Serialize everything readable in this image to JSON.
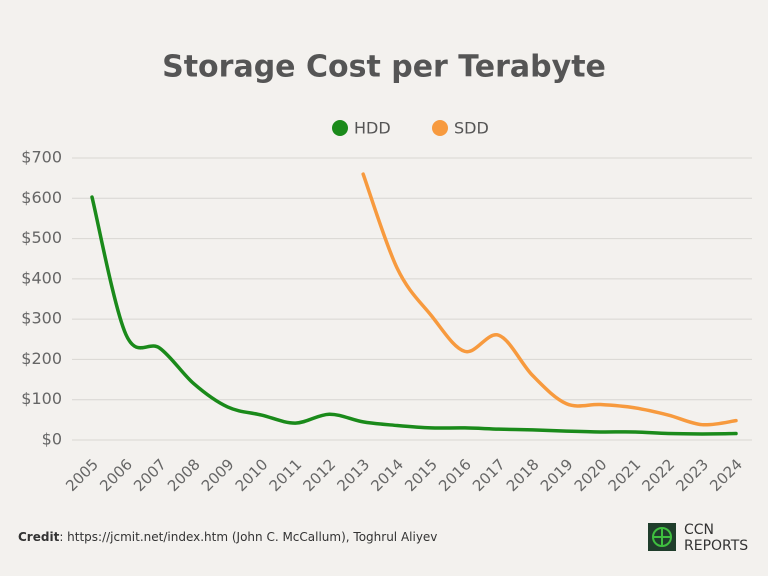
{
  "chart_data": {
    "type": "line",
    "title": "Storage Cost per Terabyte",
    "categories": [
      "2005",
      "2006",
      "2007",
      "2008",
      "2009",
      "2010",
      "2011",
      "2012",
      "2013",
      "2014",
      "2015",
      "2016",
      "2017",
      "2018",
      "2019",
      "2020",
      "2021",
      "2022",
      "2023",
      "2024"
    ],
    "series": [
      {
        "name": "HDD",
        "color": "#1a8a1a",
        "values": [
          603,
          262,
          228,
          140,
          82,
          62,
          42,
          64,
          45,
          36,
          30,
          30,
          27,
          25,
          22,
          20,
          20,
          16,
          15,
          16
        ]
      },
      {
        "name": "SDD",
        "color": "#f79a3e",
        "values": [
          null,
          null,
          null,
          null,
          null,
          null,
          null,
          null,
          660,
          427,
          310,
          220,
          260,
          160,
          90,
          88,
          80,
          62,
          38,
          48
        ]
      }
    ],
    "ylim": [
      0,
      700
    ],
    "yticks": [
      {
        "value": 0,
        "label": "$0"
      },
      {
        "value": 100,
        "label": "$100"
      },
      {
        "value": 200,
        "label": "$200"
      },
      {
        "value": 300,
        "label": "$300"
      },
      {
        "value": 400,
        "label": "$400"
      },
      {
        "value": 500,
        "label": "$500"
      },
      {
        "value": 600,
        "label": "$600"
      },
      {
        "value": 700,
        "label": "$700"
      }
    ],
    "grid": true,
    "legend": "top",
    "credit_label": "Credit",
    "credit_text": ": https://jcmit.net/index.htm (John C. McCallum), Toghrul Aliyev",
    "logo_top": "CCN",
    "logo_bottom": "REPORTS"
  }
}
